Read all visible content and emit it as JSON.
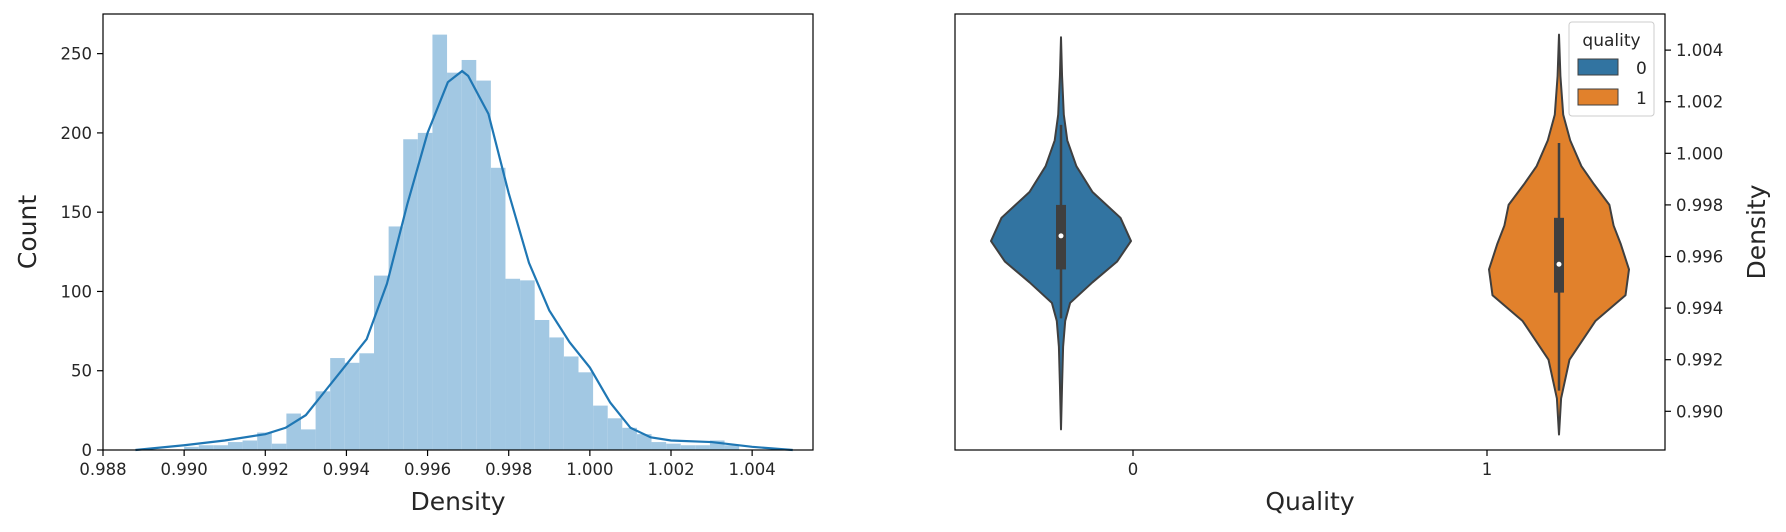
{
  "colors": {
    "hist": "#a2c8e3",
    "kde": "#1f77b4",
    "quality0": "#3274a1",
    "quality1": "#e1812c",
    "violin_edge": "#3f3f3f",
    "box": "#3f3f3f",
    "median": "#ffffff",
    "axis": "#000000"
  },
  "chart_data": [
    {
      "type": "histogram",
      "xlabel": "Density",
      "ylabel": "Count",
      "xlim": [
        0.988,
        1.0055
      ],
      "ylim": [
        0,
        275
      ],
      "xticks": [
        "0.988",
        "0.990",
        "0.992",
        "0.994",
        "0.996",
        "0.998",
        "1.000",
        "1.002",
        "1.004"
      ],
      "yticks": [
        "0",
        "50",
        "100",
        "150",
        "200",
        "250"
      ],
      "bin_start": 0.99,
      "bin_width": 0.00036,
      "counts": [
        2,
        3,
        3,
        5,
        6,
        11,
        4,
        23,
        13,
        37,
        58,
        55,
        61,
        110,
        141,
        196,
        200,
        262,
        238,
        246,
        233,
        178,
        108,
        107,
        82,
        71,
        59,
        49,
        28,
        20,
        14,
        10,
        5,
        4,
        3,
        3,
        6,
        3
      ],
      "kde": {
        "x": [
          0.9888,
          0.99,
          0.991,
          0.992,
          0.9925,
          0.993,
          0.9935,
          0.994,
          0.9945,
          0.995,
          0.9955,
          0.996,
          0.9965,
          0.99685,
          0.997,
          0.9975,
          0.998,
          0.9985,
          0.999,
          0.9995,
          1.0,
          1.0005,
          1.001,
          1.0015,
          1.002,
          1.003,
          1.004,
          1.005
        ],
        "y": [
          0,
          3,
          6,
          10,
          14,
          22,
          38,
          54,
          70,
          105,
          155,
          200,
          232,
          239,
          236,
          212,
          162,
          118,
          88,
          68,
          52,
          30,
          14,
          8,
          6,
          5,
          2,
          0
        ]
      }
    },
    {
      "type": "violin",
      "xlabel": "Quality",
      "ylabel": "Density",
      "ylim": [
        0.9885,
        1.0054
      ],
      "yticks": [
        "0.990",
        "0.992",
        "0.994",
        "0.996",
        "0.998",
        "1.000",
        "1.002",
        "1.004"
      ],
      "categories": [
        "0",
        "1"
      ],
      "legend": {
        "title": "quality",
        "entries": [
          "0",
          "1"
        ],
        "position": "top-right"
      },
      "series": [
        {
          "name": "0",
          "min": 0.9893,
          "max": 1.0045,
          "q1": 0.9955,
          "median": 0.9968,
          "q3": 0.998,
          "whisker_low": 0.9936,
          "whisker_high": 1.0011,
          "profile": [
            [
              0.9893,
              0.0
            ],
            [
              0.991,
              0.015
            ],
            [
              0.9925,
              0.03
            ],
            [
              0.9935,
              0.06
            ],
            [
              0.9942,
              0.13
            ],
            [
              0.995,
              0.45
            ],
            [
              0.9958,
              0.8
            ],
            [
              0.9966,
              1.0
            ],
            [
              0.9975,
              0.85
            ],
            [
              0.9985,
              0.45
            ],
            [
              0.9995,
              0.22
            ],
            [
              1.0005,
              0.09
            ],
            [
              1.0015,
              0.04
            ],
            [
              1.003,
              0.015
            ],
            [
              1.0045,
              0.0
            ]
          ]
        },
        {
          "name": "1",
          "min": 0.9891,
          "max": 1.0046,
          "q1": 0.9946,
          "median": 0.9957,
          "q3": 0.9975,
          "whisker_low": 0.9908,
          "whisker_high": 1.0004,
          "profile": [
            [
              0.9891,
              0.0
            ],
            [
              0.9905,
              0.03
            ],
            [
              0.992,
              0.15
            ],
            [
              0.9935,
              0.52
            ],
            [
              0.9945,
              0.95
            ],
            [
              0.9955,
              1.0
            ],
            [
              0.9965,
              0.88
            ],
            [
              0.9972,
              0.78
            ],
            [
              0.998,
              0.72
            ],
            [
              0.9988,
              0.5
            ],
            [
              0.9995,
              0.32
            ],
            [
              1.0005,
              0.16
            ],
            [
              1.0015,
              0.06
            ],
            [
              1.003,
              0.02
            ],
            [
              1.0046,
              0.0
            ]
          ]
        }
      ]
    }
  ]
}
